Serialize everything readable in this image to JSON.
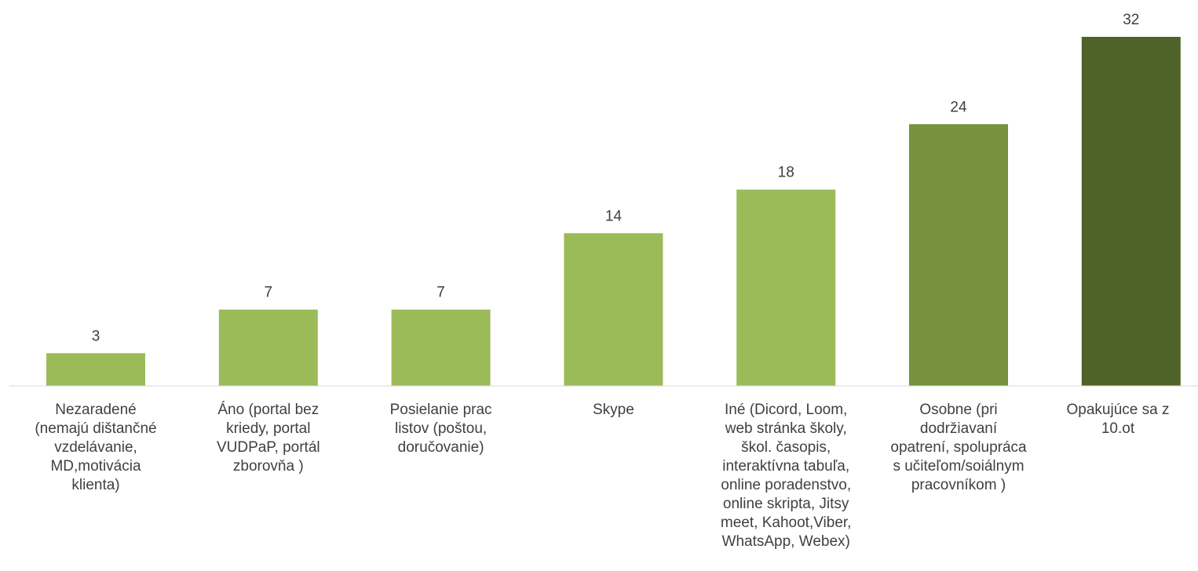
{
  "chart_data": {
    "type": "bar",
    "categories": [
      "Nezaradené\n(nemajú dištančné\nvzdelávanie,\nMD,motivácia\nklienta)",
      "Áno (portal bez\nkriedy, portal\nVUDPaP, portál\nzborovňa )",
      "Posielanie prac\nlistov (poštou,\ndoručovanie)",
      "Skype",
      "Iné (Dicord, Loom,\nweb stránka školy,\nškol. časopis,\ninteraktívna tabuľa,\nonline poradenstvo,\nonline skripta, Jitsy\nmeet, Kahoot,Viber,\nWhatsApp, Webex)",
      "Osobne (pri\ndodržiavaní\nopatrení, spolupráca\ns učiteľom/soiálnym\npracovníkom )",
      "Opakujúce sa z\n10.ot"
    ],
    "values": [
      3,
      7,
      7,
      14,
      18,
      24,
      32
    ],
    "data_labels": [
      "3",
      "7",
      "7",
      "14",
      "18",
      "24",
      "32"
    ],
    "bar_colors": [
      "#9bbb59",
      "#9bbb59",
      "#9bbb59",
      "#9bbb59",
      "#9bbb59",
      "#76923c",
      "#4f6228"
    ],
    "ylim": [
      0,
      32
    ],
    "grid": false,
    "legend": "none",
    "title": "",
    "xlabel": "",
    "ylabel": ""
  }
}
